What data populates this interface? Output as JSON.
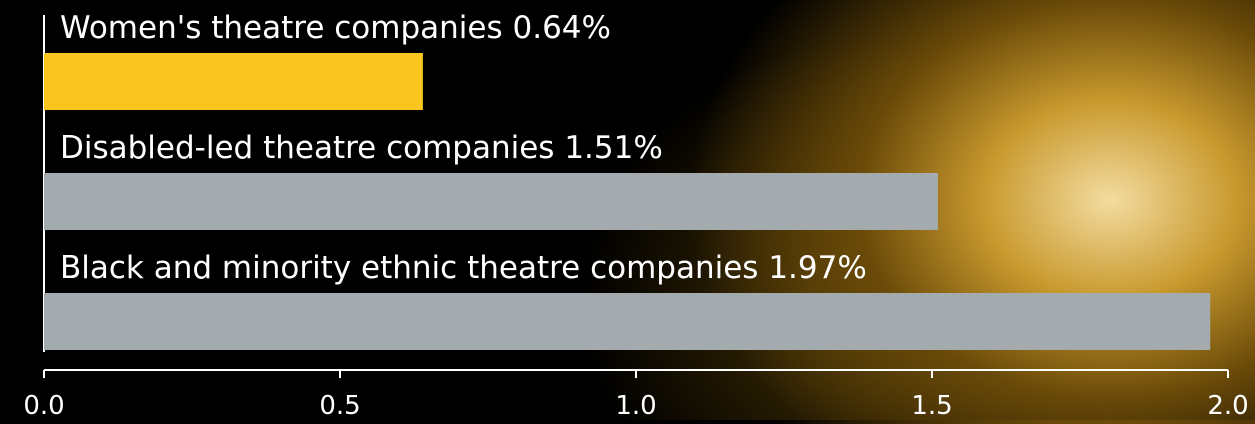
{
  "chart_data": {
    "type": "bar",
    "orientation": "horizontal",
    "categories": [
      "Women's theatre companies",
      "Disabled-led theatre companies",
      "Black and minority ethnic theatre companies"
    ],
    "values": [
      0.64,
      1.51,
      1.97
    ],
    "value_labels": [
      "0.64%",
      "1.51%",
      "1.97%"
    ],
    "colors": [
      "#fbc51f",
      "#a4abaf",
      "#a4abaf"
    ],
    "xlim": [
      0,
      2
    ],
    "xticks": [
      {
        "value": 0,
        "label": "0.0"
      },
      0.5,
      {
        "value": 1,
        "label": "1.0"
      },
      1.5,
      {
        "value": 2,
        "label": "2.0"
      }
    ]
  }
}
